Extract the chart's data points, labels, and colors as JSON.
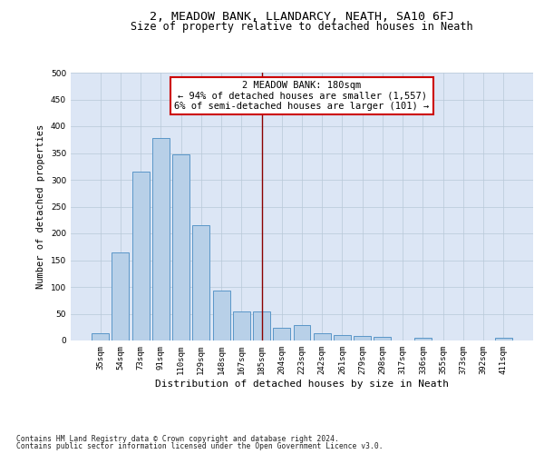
{
  "title": "2, MEADOW BANK, LLANDARCY, NEATH, SA10 6FJ",
  "subtitle": "Size of property relative to detached houses in Neath",
  "xlabel": "Distribution of detached houses by size in Neath",
  "ylabel": "Number of detached properties",
  "bar_values": [
    14,
    165,
    315,
    378,
    348,
    215,
    93,
    55,
    55,
    24,
    28,
    14,
    10,
    9,
    7,
    0,
    5,
    0,
    0,
    0,
    5
  ],
  "categories": [
    "35sqm",
    "54sqm",
    "73sqm",
    "91sqm",
    "110sqm",
    "129sqm",
    "148sqm",
    "167sqm",
    "185sqm",
    "204sqm",
    "223sqm",
    "242sqm",
    "261sqm",
    "279sqm",
    "298sqm",
    "317sqm",
    "336sqm",
    "355sqm",
    "373sqm",
    "392sqm",
    "411sqm"
  ],
  "bar_color": "#b8d0e8",
  "bar_edge_color": "#5a96c8",
  "bg_color": "#dce6f5",
  "vline_x_index": 8,
  "vline_color": "#8b0000",
  "annotation_text_line1": "2 MEADOW BANK: 180sqm",
  "annotation_text_line2": "← 94% of detached houses are smaller (1,557)",
  "annotation_text_line3": "6% of semi-detached houses are larger (101) →",
  "annotation_box_color": "#ffffff",
  "annotation_box_edge_color": "#cc0000",
  "ylim": [
    0,
    500
  ],
  "yticks": [
    0,
    50,
    100,
    150,
    200,
    250,
    300,
    350,
    400,
    450,
    500
  ],
  "footer_line1": "Contains HM Land Registry data © Crown copyright and database right 2024.",
  "footer_line2": "Contains public sector information licensed under the Open Government Licence v3.0.",
  "title_fontsize": 9.5,
  "subtitle_fontsize": 8.5,
  "xlabel_fontsize": 8,
  "ylabel_fontsize": 7.5,
  "tick_fontsize": 6.5,
  "annotation_fontsize": 7.5,
  "footer_fontsize": 5.8
}
